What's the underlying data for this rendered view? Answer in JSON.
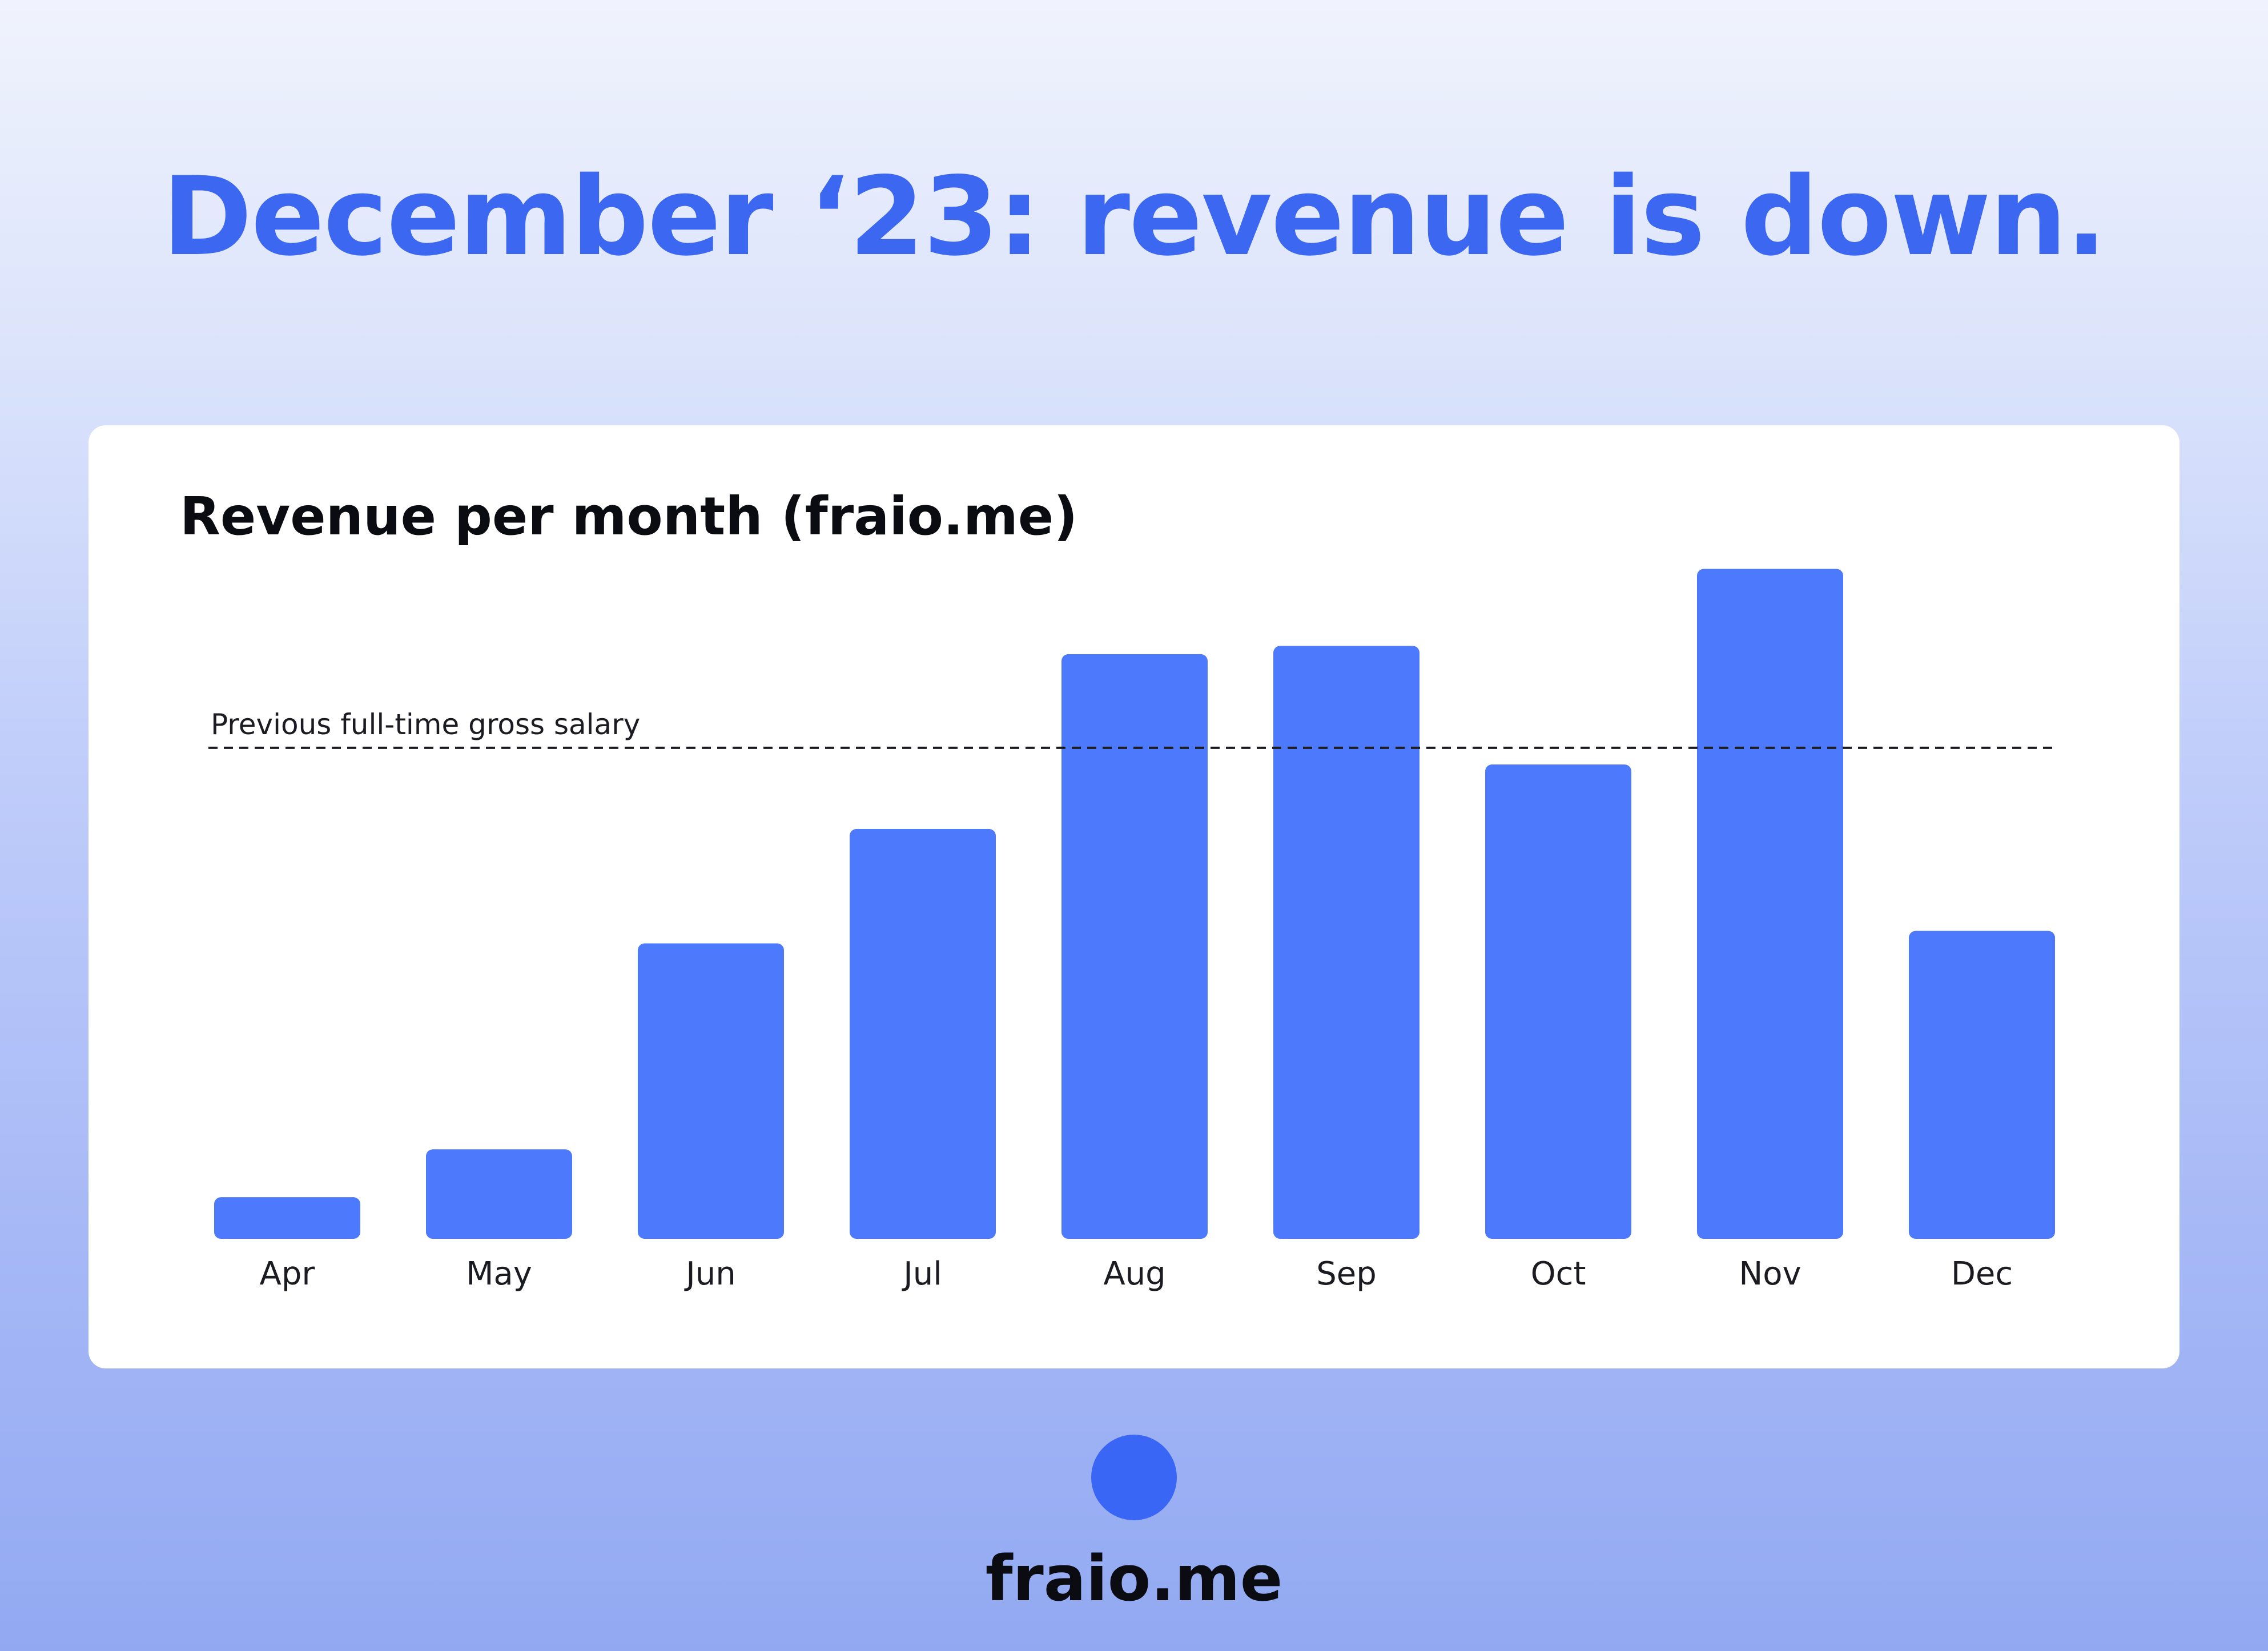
{
  "headline": "December ‘23: revenue is down.",
  "brand": {
    "name": "fraio.me",
    "icon": "circle-logo-icon",
    "color": "#3a66f5"
  },
  "colors": {
    "headline": "#3c67f1",
    "bar": "#4d79fd",
    "text": "#0b0b12"
  },
  "chart_data": {
    "type": "bar",
    "title": "Revenue per month (fraio.me)",
    "xlabel": "",
    "ylabel": "",
    "categories": [
      "Apr",
      "May",
      "Jun",
      "Jul",
      "Aug",
      "Sep",
      "Oct",
      "Nov",
      "Dec"
    ],
    "values": [
      8,
      10.3,
      20.2,
      25.7,
      34.1,
      34.5,
      28.8,
      38.2,
      20.8
    ],
    "ylim": [
      6,
      42
    ],
    "y_axis_visible": false,
    "grid": false,
    "legend": "none",
    "reference_line": {
      "label": "Previous full-time gross salary",
      "value": 29.6,
      "style": "dashed"
    }
  }
}
